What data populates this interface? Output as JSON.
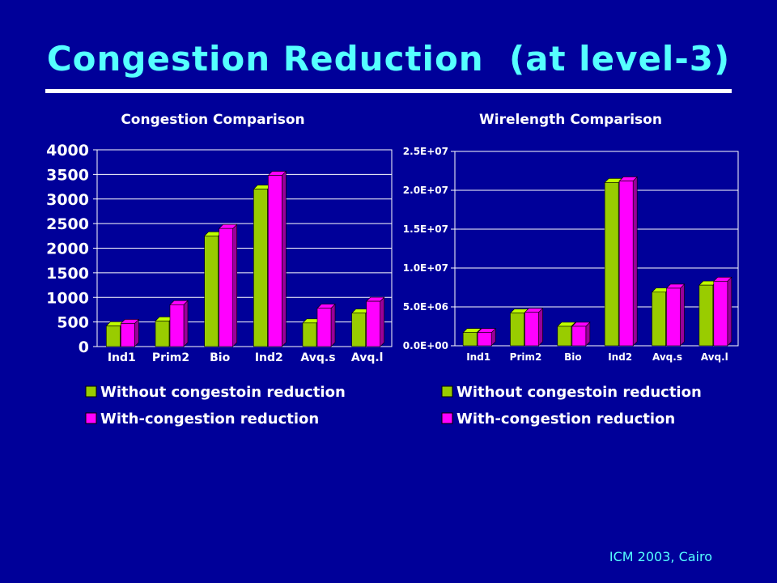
{
  "slide": {
    "title": "Congestion Reduction  (at level-3)",
    "footer": "ICM 2003, Cairo"
  },
  "colors": {
    "background": "#000099",
    "title": "#55ffff",
    "series_without": "#99cc00",
    "series_with": "#ff00ff"
  },
  "chart_data": [
    {
      "type": "bar",
      "title": "Congestion Comparison",
      "categories": [
        "Ind1",
        "Prim2",
        "Bio",
        "Ind2",
        "Avq.s",
        "Avq.l"
      ],
      "yticks": [
        "0",
        "500",
        "1000",
        "1500",
        "2000",
        "2500",
        "3000",
        "3500",
        "4000"
      ],
      "ylim": [
        0,
        4000
      ],
      "grid": true,
      "legend": "bottom",
      "series": [
        {
          "name": "Without congestoin reduction",
          "values": [
            420,
            520,
            2250,
            3200,
            480,
            680
          ]
        },
        {
          "name": "With-congestion reduction",
          "values": [
            470,
            850,
            2400,
            3480,
            780,
            920
          ]
        }
      ]
    },
    {
      "type": "bar",
      "title": "Wirelength Comparison",
      "categories": [
        "Ind1",
        "Prim2",
        "Bio",
        "Ind2",
        "Avq.s",
        "Avq.l"
      ],
      "yticks": [
        "0.0E+00",
        "5.0E+06",
        "1.0E+07",
        "1.5E+07",
        "2.0E+07",
        "2.5E+07"
      ],
      "ylim": [
        0,
        25000000
      ],
      "grid": true,
      "legend": "bottom",
      "series": [
        {
          "name": "Without congestoin reduction",
          "values": [
            1700000,
            4200000,
            2500000,
            21000000,
            6900000,
            7800000
          ]
        },
        {
          "name": "With-congestion reduction",
          "values": [
            1700000,
            4300000,
            2500000,
            21200000,
            7400000,
            8300000
          ]
        }
      ]
    }
  ]
}
